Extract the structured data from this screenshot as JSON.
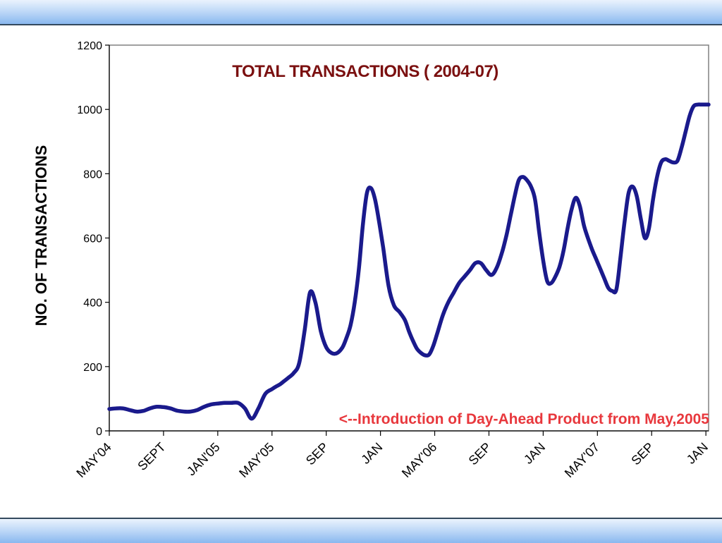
{
  "chart_data": {
    "type": "line",
    "title": "TOTAL TRANSACTIONS ( 2004-07)",
    "xlabel": "",
    "ylabel": "NO. OF TRANSACTIONS",
    "ylim": [
      0,
      1200
    ],
    "yticks": [
      0,
      200,
      400,
      600,
      800,
      1000,
      1200
    ],
    "xlim": [
      0,
      44.2
    ],
    "xtick_labels": [
      "MAY'04",
      "SEPT",
      "JAN'05",
      "MAY'05",
      "SEP",
      "JAN",
      "MAY'06",
      "SEP",
      "JAN",
      "MAY'07",
      "SEP",
      "JAN"
    ],
    "annotation": "<--Introduction of Day-Ahead Product from May,2005",
    "colors": {
      "line": "#1a1a8c",
      "title": "#7b1010",
      "annotation": "#e8383d",
      "plot_border": "#808080"
    },
    "series": [
      {
        "x": [
          0,
          0.5,
          1,
          1.5,
          2,
          2.5,
          3,
          3.5,
          4,
          4.5,
          5,
          5.5,
          6,
          6.5,
          7,
          7.5,
          8,
          8.5,
          9,
          9.5,
          10,
          10.5,
          11,
          11.5,
          12,
          12.3,
          12.6,
          12.9,
          13.2,
          13.6,
          14,
          14.4,
          14.8,
          15.2,
          15.6,
          16,
          16.4,
          16.8,
          17.2,
          17.5,
          17.8,
          18.1,
          18.4,
          18.7,
          19,
          19.3,
          19.6,
          19.9,
          20.2,
          20.6,
          21,
          21.4,
          21.8,
          22.1,
          22.4,
          22.7,
          23,
          23.3,
          23.6,
          23.9,
          24.2,
          24.6,
          25,
          25.4,
          25.8,
          26.2,
          26.6,
          27,
          27.4,
          27.8,
          28.2,
          28.6,
          29,
          29.3,
          29.6,
          29.9,
          30.2,
          30.5,
          30.8,
          31.1,
          31.4,
          31.7,
          32,
          32.3,
          32.6,
          32.9,
          33.2,
          33.5,
          33.8,
          34.1,
          34.4,
          34.7,
          35,
          35.3,
          35.6,
          35.9,
          36.2,
          36.5,
          36.8,
          37.1,
          37.4,
          37.7,
          38,
          38.3,
          38.6,
          38.9,
          39.2,
          39.5,
          39.8,
          40.1,
          40.4,
          40.7,
          41,
          41.3,
          41.6,
          41.9,
          42.2,
          42.5,
          42.8,
          43.1,
          43.4,
          43.7,
          44.2
        ],
        "values": [
          68,
          70,
          70,
          65,
          60,
          62,
          70,
          75,
          74,
          70,
          63,
          60,
          60,
          65,
          75,
          82,
          85,
          87,
          87,
          87,
          70,
          38,
          70,
          115,
          130,
          138,
          145,
          155,
          165,
          180,
          210,
          310,
          430,
          400,
          310,
          260,
          242,
          242,
          260,
          290,
          330,
          400,
          500,
          640,
          740,
          755,
          720,
          650,
          570,
          450,
          390,
          370,
          345,
          310,
          280,
          255,
          242,
          235,
          238,
          265,
          305,
          360,
          400,
          430,
          460,
          480,
          500,
          522,
          522,
          500,
          485,
          510,
          560,
          610,
          670,
          730,
          780,
          790,
          780,
          760,
          720,
          620,
          530,
          465,
          460,
          480,
          510,
          560,
          630,
          690,
          725,
          700,
          640,
          600,
          565,
          535,
          505,
          475,
          445,
          435,
          440,
          540,
          650,
          740,
          760,
          730,
          660,
          600,
          630,
          720,
          790,
          835,
          845,
          840,
          835,
          840,
          880,
          930,
          980,
          1010,
          1015,
          1015,
          1015
        ]
      }
    ]
  }
}
